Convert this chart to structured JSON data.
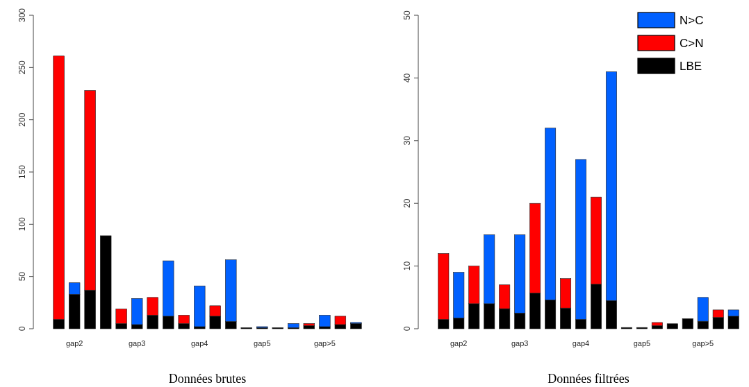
{
  "chart_data": [
    {
      "type": "bar",
      "stacked": true,
      "xlabel": "Données brutes",
      "categories": [
        null,
        "gap2",
        null,
        null,
        null,
        "gap3",
        null,
        null,
        null,
        "gap4",
        null,
        null,
        null,
        "gap5",
        null,
        null,
        null,
        "gap>5",
        null,
        null
      ],
      "series": [
        {
          "color": "#000000",
          "values": [
            9,
            33,
            37,
            89,
            5,
            4,
            13,
            12,
            5,
            2,
            12,
            7,
            1,
            1,
            1,
            1,
            3,
            2,
            4,
            5
          ]
        },
        {
          "color": "#ff0000",
          "values": [
            252,
            null,
            191,
            null,
            14,
            null,
            17,
            null,
            8,
            null,
            10,
            null,
            null,
            null,
            null,
            null,
            2,
            null,
            8,
            null
          ]
        },
        {
          "color": "#0060ff",
          "values": [
            null,
            11,
            null,
            0,
            null,
            25,
            null,
            53,
            null,
            39,
            null,
            59,
            null,
            1,
            null,
            4,
            null,
            11,
            null,
            1
          ]
        }
      ],
      "ylim": [
        0,
        300
      ],
      "yticks": [
        0,
        50,
        100,
        150,
        200,
        250,
        300
      ],
      "grid": false,
      "legend": false
    },
    {
      "type": "bar",
      "stacked": true,
      "xlabel": "Données filtrées",
      "categories": [
        null,
        "gap2",
        null,
        null,
        null,
        "gap3",
        null,
        null,
        null,
        "gap4",
        null,
        null,
        null,
        "gap5",
        null,
        null,
        null,
        "gap>5",
        null,
        null
      ],
      "series": [
        {
          "name": "LBE",
          "color": "#000000",
          "values": [
            1.5,
            1.7,
            4,
            4,
            3.2,
            2.5,
            5.7,
            4.6,
            3.3,
            1.5,
            7.1,
            4.5,
            0.2,
            0.2,
            0.5,
            0.8,
            1.6,
            1.2,
            1.8,
            2
          ]
        },
        {
          "name": "C>N",
          "color": "#ff0000",
          "values": [
            10.5,
            null,
            6,
            null,
            3.8,
            null,
            14.3,
            null,
            4.7,
            null,
            13.9,
            null,
            null,
            null,
            0.5,
            null,
            null,
            null,
            1.2,
            null
          ]
        },
        {
          "name": "N>C",
          "color": "#0060ff",
          "values": [
            null,
            7.3,
            null,
            11,
            null,
            12.5,
            null,
            27.4,
            null,
            25.5,
            null,
            36.5,
            null,
            null,
            null,
            null,
            null,
            3.8,
            null,
            1
          ]
        }
      ],
      "ylim": [
        0,
        50
      ],
      "yticks": [
        0,
        10,
        20,
        30,
        40,
        50
      ],
      "grid": false,
      "legend": "top right"
    }
  ]
}
